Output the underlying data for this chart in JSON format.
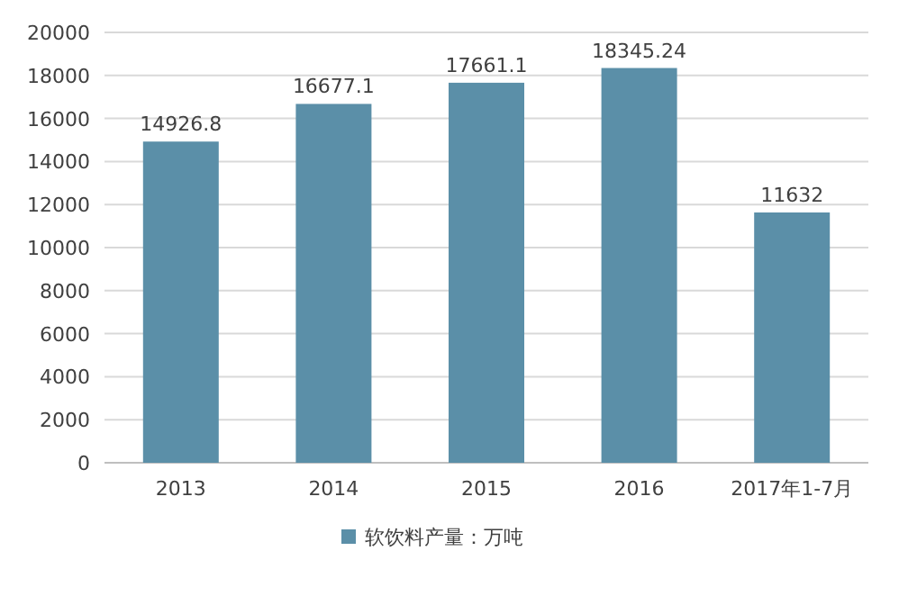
{
  "chart_data": {
    "type": "bar",
    "categories": [
      "2013",
      "2014",
      "2015",
      "2016",
      "2017年1-7月"
    ],
    "series": [
      {
        "name": "软饮料产量：万吨",
        "color": "#5b8fa8",
        "values": [
          14926.8,
          16677.1,
          17661.1,
          18345.24,
          11632
        ]
      }
    ],
    "ylim": [
      0,
      20000
    ],
    "yticks": [
      0,
      2000,
      4000,
      6000,
      8000,
      10000,
      12000,
      14000,
      16000,
      18000,
      20000
    ],
    "grid": "y",
    "legend": "bottom",
    "data_labels": true
  }
}
